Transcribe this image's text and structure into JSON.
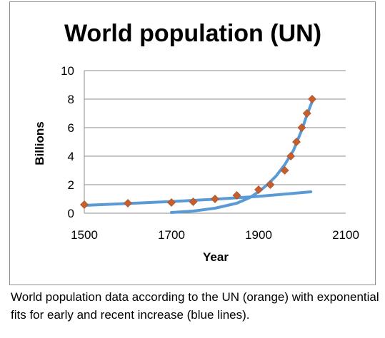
{
  "chart_data": {
    "type": "line",
    "title": "World population (UN)",
    "xlabel": "Year",
    "ylabel": "Billions",
    "xlim": [
      1500,
      2100
    ],
    "ylim": [
      0,
      10
    ],
    "x_ticks": [
      1500,
      1700,
      1900,
      2100
    ],
    "y_ticks": [
      0,
      2,
      4,
      6,
      8,
      10
    ],
    "grid": "horizontal",
    "legend": "none",
    "series": [
      {
        "style": "markers",
        "marker": "diamond",
        "color": "#c65f2e",
        "x": [
          1500,
          1600,
          1700,
          1750,
          1800,
          1850,
          1900,
          1927,
          1960,
          1974,
          1987,
          1999,
          2011,
          2023
        ],
        "y": [
          0.6,
          0.7,
          0.75,
          0.8,
          1.0,
          1.25,
          1.65,
          2.0,
          3.0,
          4.0,
          5.0,
          6.0,
          7.0,
          8.0
        ]
      },
      {
        "style": "line",
        "color": "#5b9bd5",
        "x": [
          1500,
          1600,
          1700,
          1800,
          1900,
          2020
        ],
        "y": [
          0.55,
          0.68,
          0.82,
          0.98,
          1.18,
          1.5
        ]
      },
      {
        "style": "line",
        "color": "#5b9bd5",
        "x": [
          1700,
          1750,
          1800,
          1850,
          1880,
          1900,
          1920,
          1940,
          1960,
          1980,
          2000,
          2010,
          2025
        ],
        "y": [
          0.05,
          0.15,
          0.35,
          0.7,
          1.1,
          1.5,
          2.0,
          2.6,
          3.4,
          4.4,
          5.9,
          6.8,
          8.0
        ]
      }
    ],
    "caption": "World population data according to the UN (orange) with exponential fits for early and recent increase (blue lines)."
  }
}
